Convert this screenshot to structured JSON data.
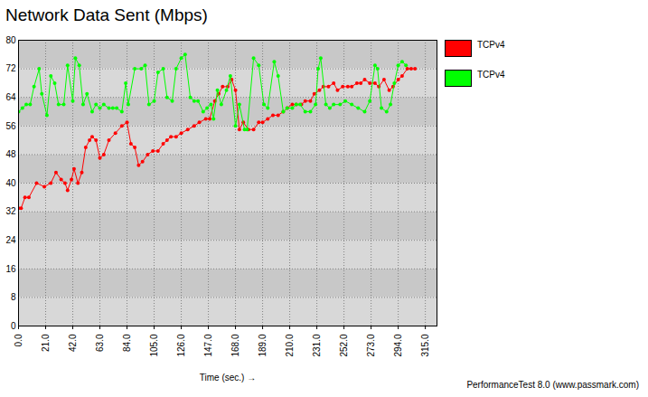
{
  "chart_data": {
    "type": "line",
    "title": "Network Data Sent (Mbps)",
    "x_label": "Time (sec.)",
    "caption": "PerformanceTest 8.0 (www.passmark.com)",
    "xlim": [
      0,
      324
    ],
    "xticks": [
      {
        "value": 0,
        "label": "0.0"
      },
      {
        "value": 21,
        "label": "21.0"
      },
      {
        "value": 42,
        "label": "42.0"
      },
      {
        "value": 63,
        "label": "63.0"
      },
      {
        "value": 84,
        "label": "84.0"
      },
      {
        "value": 105,
        "label": "105.0"
      },
      {
        "value": 126,
        "label": "126.0"
      },
      {
        "value": 147,
        "label": "147.0"
      },
      {
        "value": 168,
        "label": "168.0"
      },
      {
        "value": 189,
        "label": "189.0"
      },
      {
        "value": 210,
        "label": "210.0"
      },
      {
        "value": 231,
        "label": "231.0"
      },
      {
        "value": 252,
        "label": "252.0"
      },
      {
        "value": 273,
        "label": "273.0"
      },
      {
        "value": 294,
        "label": "294.0"
      },
      {
        "value": 315,
        "label": "315.0"
      }
    ],
    "ylim": [
      0,
      80
    ],
    "yticks": [
      0,
      8,
      16,
      24,
      32,
      40,
      48,
      56,
      64,
      72,
      80
    ],
    "grid": true,
    "legend": "right",
    "series": [
      {
        "name": "TCPv4",
        "color": "#ff0000",
        "marker": "circle",
        "line_style": "solid",
        "x": [
          0,
          2,
          5,
          8,
          14,
          20,
          25,
          29,
          33,
          36,
          38,
          41,
          43,
          46,
          49,
          52,
          55,
          57,
          60,
          63,
          66,
          70,
          75,
          80,
          84,
          87,
          90,
          93,
          96,
          100,
          104,
          108,
          112,
          115,
          118,
          122,
          126,
          131,
          136,
          140,
          145,
          148,
          152,
          155,
          158,
          162,
          165,
          168,
          171,
          174,
          178,
          182,
          186,
          189,
          193,
          197,
          201,
          205,
          208,
          212,
          215,
          219,
          222,
          226,
          229,
          233,
          236,
          240,
          244,
          247,
          251,
          255,
          258,
          262,
          265,
          268,
          272,
          276,
          279,
          283,
          287,
          290,
          294,
          297,
          301,
          304,
          307
        ],
        "values": [
          33,
          33,
          36,
          36,
          40,
          39,
          40,
          43,
          41,
          40,
          38,
          41,
          44,
          40,
          43,
          50,
          52,
          53,
          52,
          47,
          48,
          52,
          54,
          56,
          57,
          51,
          50,
          45,
          46,
          48,
          49,
          49,
          51,
          52,
          53,
          53,
          54,
          55,
          56,
          57,
          58,
          58,
          63,
          65,
          67,
          67,
          69,
          66,
          55,
          57,
          55,
          55,
          57,
          57,
          58,
          59,
          59,
          60,
          61,
          62,
          62,
          62,
          63,
          63,
          65,
          66,
          67,
          67,
          68,
          66,
          67,
          67,
          67,
          68,
          68,
          69,
          68,
          68,
          67,
          69,
          66,
          67,
          69,
          70,
          72,
          72,
          72
        ]
      },
      {
        "name": "TCPv4",
        "color": "#00ff00",
        "marker": "circle",
        "line_style": "solid",
        "x": [
          0,
          3,
          6,
          9,
          12,
          16,
          18,
          22,
          25,
          28,
          31,
          35,
          38,
          42,
          44,
          47,
          50,
          53,
          57,
          60,
          63,
          66,
          70,
          73,
          76,
          80,
          83,
          85,
          90,
          95,
          98,
          101,
          105,
          108,
          112,
          115,
          119,
          122,
          126,
          129,
          133,
          136,
          139,
          143,
          146,
          149,
          151,
          154,
          157,
          161,
          164,
          168,
          171,
          175,
          177,
          182,
          186,
          190,
          193,
          198,
          201,
          205,
          208,
          212,
          215,
          218,
          222,
          226,
          230,
          232,
          234,
          238,
          241,
          244,
          249,
          253,
          258,
          263,
          268,
          272,
          276,
          278,
          281,
          285,
          288,
          291,
          294,
          297,
          300
        ],
        "values": [
          60,
          61,
          62,
          62,
          67,
          72,
          65,
          59,
          70,
          68,
          62,
          62,
          73,
          63,
          75,
          73,
          62,
          65,
          60,
          62,
          61,
          62,
          61,
          61,
          61,
          60,
          68,
          62,
          72,
          72,
          73,
          62,
          63,
          71,
          72,
          64,
          63,
          72,
          75,
          76,
          64,
          63,
          63,
          60,
          61,
          62,
          58,
          66,
          62,
          66,
          70,
          56,
          62,
          55,
          55,
          75,
          73,
          62,
          61,
          74,
          70,
          60,
          61,
          61,
          62,
          62,
          60,
          60,
          62,
          72,
          75,
          62,
          61,
          62,
          62,
          63,
          62,
          61,
          60,
          63,
          73,
          72,
          61,
          60,
          62,
          68,
          73,
          74,
          73
        ]
      }
    ]
  }
}
